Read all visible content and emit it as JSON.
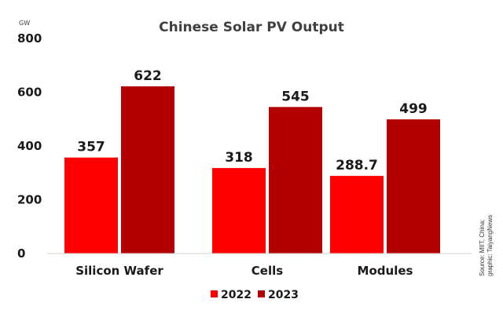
{
  "chart_data": {
    "type": "bar",
    "title": "Chinese Solar PV Output",
    "ylabel": "GW",
    "ylim": [
      0,
      800
    ],
    "yticks": [
      "0",
      "200",
      "400",
      "600",
      "800"
    ],
    "categories": [
      "Silicon Wafer",
      "Cells",
      "Modules"
    ],
    "series": [
      {
        "name": "2022",
        "color": "#ff0000",
        "values": [
          357,
          318,
          288.7
        ],
        "labels": [
          "357",
          "318",
          "288.7"
        ]
      },
      {
        "name": "2023",
        "color": "#b30000",
        "values": [
          622,
          545,
          499
        ],
        "labels": [
          "622",
          "545",
          "499"
        ]
      }
    ],
    "legend_position": "bottom",
    "grid": false,
    "source_lines": [
      "Source: MIIT, China;",
      "graphic: TaiyangNews"
    ]
  }
}
